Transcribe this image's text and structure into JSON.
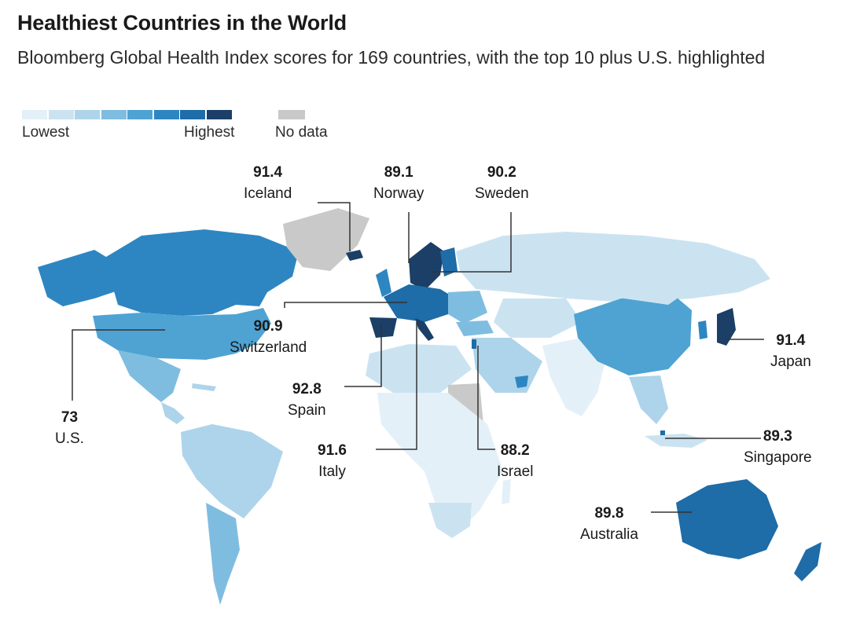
{
  "header": {
    "title": "Healthiest Countries in the World",
    "subtitle": "Bloomberg Global Health Index scores for 169 countries, with the top 10 plus U.S. highlighted"
  },
  "legend": {
    "low_label": "Lowest",
    "high_label": "Highest",
    "no_data_label": "No data",
    "scale_colors": [
      "#e4f0f8",
      "#cbe3f1",
      "#add4ea",
      "#7fbde0",
      "#4ea3d3",
      "#2d86c1",
      "#1e6ca8",
      "#1b3f66"
    ],
    "no_data_color": "#c9c9c9"
  },
  "colors": {
    "ocean": "#ffffff",
    "leader_line": "#333333"
  },
  "countries": [
    {
      "name": "Iceland",
      "score": "91.4"
    },
    {
      "name": "Norway",
      "score": "89.1"
    },
    {
      "name": "Sweden",
      "score": "90.2"
    },
    {
      "name": "Switzerland",
      "score": "90.9"
    },
    {
      "name": "Spain",
      "score": "92.8"
    },
    {
      "name": "Italy",
      "score": "91.6"
    },
    {
      "name": "Israel",
      "score": "88.2"
    },
    {
      "name": "U.S.",
      "score": "73"
    },
    {
      "name": "Japan",
      "score": "91.4"
    },
    {
      "name": "Singapore",
      "score": "89.3"
    },
    {
      "name": "Australia",
      "score": "89.8"
    }
  ]
}
